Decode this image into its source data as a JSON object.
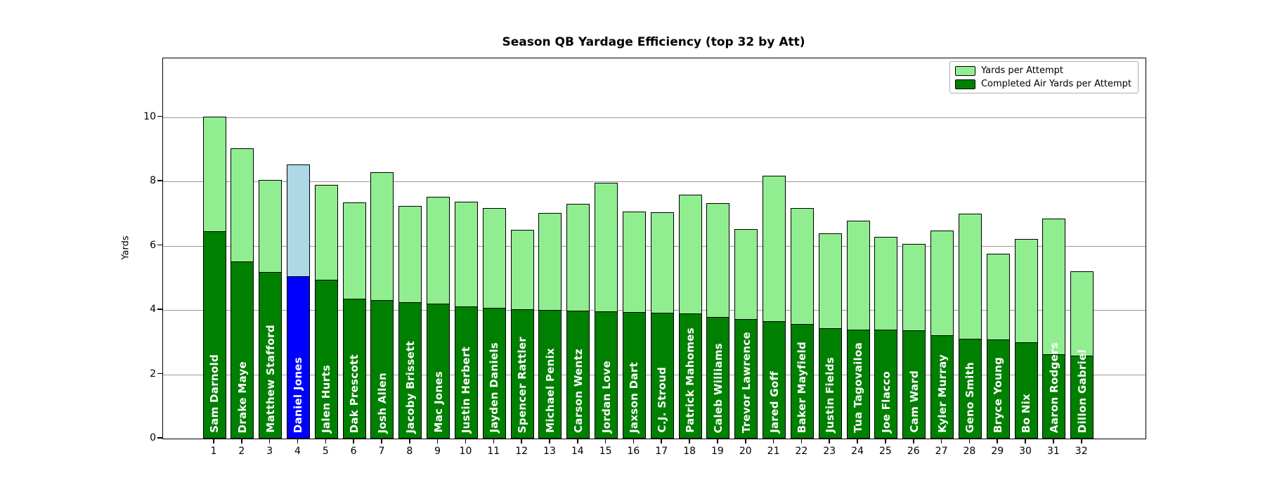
{
  "chart_data": {
    "type": "bar",
    "overlay": true,
    "title": "Season QB Yardage Efficiency (top 32 by Att)",
    "xlabel": "",
    "ylabel": "Yards",
    "ylim": [
      0,
      11.83
    ],
    "yticks": [
      0,
      2,
      4,
      6,
      8,
      10
    ],
    "grid": true,
    "legend_position": "upper right",
    "legend": [
      {
        "label": "Yards per Attempt",
        "color": "#90EE90"
      },
      {
        "label": "Completed Air Yards per Attempt",
        "color": "#008000"
      }
    ],
    "colors": {
      "ypa_fill": "#90EE90",
      "cay_fill": "#008000",
      "highlight_ypa_fill": "#ADD8E6",
      "highlight_cay_fill": "#0000FF",
      "bar_edge": "#000000",
      "label_text": "#ffffff"
    },
    "series": [
      {
        "name": "Yards per Attempt",
        "key": "ypa"
      },
      {
        "name": "Completed Air Yards per Attempt",
        "key": "cay"
      }
    ],
    "players": [
      {
        "rank": 1,
        "name": "Sam Darnold",
        "ypa": 10.02,
        "cay": 6.43,
        "highlight": false
      },
      {
        "rank": 2,
        "name": "Drake Maye",
        "ypa": 9.03,
        "cay": 5.48,
        "highlight": false
      },
      {
        "rank": 3,
        "name": "Matthew Stafford",
        "ypa": 8.05,
        "cay": 5.17,
        "highlight": false
      },
      {
        "rank": 4,
        "name": "Daniel Jones",
        "ypa": 8.52,
        "cay": 5.02,
        "highlight": true
      },
      {
        "rank": 5,
        "name": "Jalen Hurts",
        "ypa": 7.89,
        "cay": 4.93,
        "highlight": false
      },
      {
        "rank": 6,
        "name": "Dak Prescott",
        "ypa": 7.34,
        "cay": 4.32,
        "highlight": false
      },
      {
        "rank": 7,
        "name": "Josh Allen",
        "ypa": 8.29,
        "cay": 4.29,
        "highlight": false
      },
      {
        "rank": 8,
        "name": "Jacoby Brissett",
        "ypa": 7.24,
        "cay": 4.22,
        "highlight": false
      },
      {
        "rank": 9,
        "name": "Mac Jones",
        "ypa": 7.52,
        "cay": 4.18,
        "highlight": false
      },
      {
        "rank": 10,
        "name": "Justin Herbert",
        "ypa": 7.38,
        "cay": 4.08,
        "highlight": false
      },
      {
        "rank": 11,
        "name": "Jayden Daniels",
        "ypa": 7.17,
        "cay": 4.05,
        "highlight": false
      },
      {
        "rank": 12,
        "name": "Spencer Rattler",
        "ypa": 6.5,
        "cay": 4.0,
        "highlight": false
      },
      {
        "rank": 13,
        "name": "Michael Penix",
        "ypa": 7.02,
        "cay": 3.97,
        "highlight": false
      },
      {
        "rank": 14,
        "name": "Carson Wentz",
        "ypa": 7.3,
        "cay": 3.96,
        "highlight": false
      },
      {
        "rank": 15,
        "name": "Jordan Love",
        "ypa": 7.96,
        "cay": 3.94,
        "highlight": false
      },
      {
        "rank": 16,
        "name": "Jaxson Dart",
        "ypa": 7.07,
        "cay": 3.92,
        "highlight": false
      },
      {
        "rank": 17,
        "name": "C.J. Stroud",
        "ypa": 7.04,
        "cay": 3.9,
        "highlight": false
      },
      {
        "rank": 18,
        "name": "Patrick Mahomes",
        "ypa": 7.59,
        "cay": 3.88,
        "highlight": false
      },
      {
        "rank": 19,
        "name": "Caleb Williams",
        "ypa": 7.33,
        "cay": 3.76,
        "highlight": false
      },
      {
        "rank": 20,
        "name": "Trevor Lawrence",
        "ypa": 6.52,
        "cay": 3.7,
        "highlight": false
      },
      {
        "rank": 21,
        "name": "Jared Goff",
        "ypa": 8.18,
        "cay": 3.62,
        "highlight": false
      },
      {
        "rank": 22,
        "name": "Baker Mayfield",
        "ypa": 7.17,
        "cay": 3.54,
        "highlight": false
      },
      {
        "rank": 23,
        "name": "Justin Fields",
        "ypa": 6.39,
        "cay": 3.42,
        "highlight": false
      },
      {
        "rank": 24,
        "name": "Tua Tagovailoa",
        "ypa": 6.79,
        "cay": 3.37,
        "highlight": false
      },
      {
        "rank": 25,
        "name": "Joe Flacco",
        "ypa": 6.28,
        "cay": 3.36,
        "highlight": false
      },
      {
        "rank": 26,
        "name": "Cam Ward",
        "ypa": 6.06,
        "cay": 3.34,
        "highlight": false
      },
      {
        "rank": 27,
        "name": "Kyler Murray",
        "ypa": 6.48,
        "cay": 3.19,
        "highlight": false
      },
      {
        "rank": 28,
        "name": "Geno Smith",
        "ypa": 7.0,
        "cay": 3.09,
        "highlight": false
      },
      {
        "rank": 29,
        "name": "Bryce Young",
        "ypa": 5.76,
        "cay": 3.07,
        "highlight": false
      },
      {
        "rank": 30,
        "name": "Bo Nix",
        "ypa": 6.21,
        "cay": 2.98,
        "highlight": false
      },
      {
        "rank": 31,
        "name": "Aaron Rodgers",
        "ypa": 6.84,
        "cay": 2.61,
        "highlight": false
      },
      {
        "rank": 32,
        "name": "Dillon Gabriel",
        "ypa": 5.2,
        "cay": 2.55,
        "highlight": false
      }
    ]
  }
}
